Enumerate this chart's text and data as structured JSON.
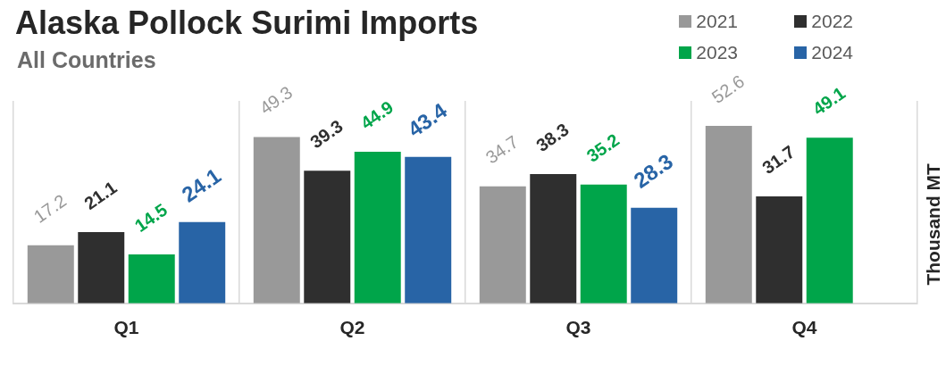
{
  "chart_data": {
    "type": "bar",
    "title": "Alaska Pollock Surimi Imports",
    "subtitle": "All Countries",
    "ylabel": "Thousand MT",
    "categories": [
      "Q1",
      "Q2",
      "Q3",
      "Q4"
    ],
    "series": [
      {
        "name": "2021",
        "color": "#999999",
        "values": [
          17.2,
          49.3,
          34.7,
          52.6
        ]
      },
      {
        "name": "2022",
        "color": "#2f2f2f",
        "values": [
          21.1,
          39.3,
          38.3,
          31.7
        ]
      },
      {
        "name": "2023",
        "color": "#00a54a",
        "values": [
          14.5,
          44.9,
          35.2,
          49.1
        ]
      },
      {
        "name": "2024",
        "color": "#2864a6",
        "values": [
          24.1,
          43.4,
          28.3,
          null
        ]
      }
    ],
    "ylim": [
      0,
      60
    ],
    "data_labels": true,
    "grid": "x",
    "legend": "top right",
    "tick_labels": "x"
  }
}
